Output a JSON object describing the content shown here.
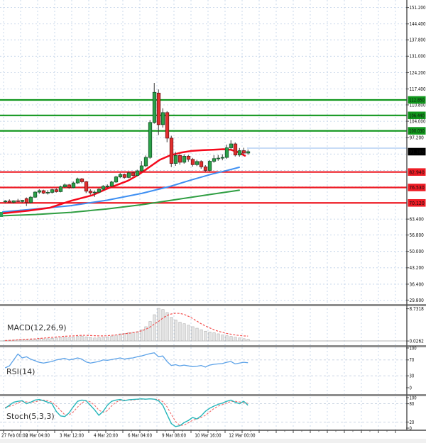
{
  "chart_data": {
    "type": "candlestick",
    "title": "",
    "current_price": {
      "label": "91.385",
      "value": 91.385,
      "badge_bg": "#000000",
      "badge_text": "#ffffff"
    },
    "price_ticks": [
      {
        "label": "151.200",
        "value": 151.2
      },
      {
        "label": "144.400",
        "value": 144.4
      },
      {
        "label": "137.800",
        "value": 137.8
      },
      {
        "label": "131.000",
        "value": 131.0
      },
      {
        "label": "124.200",
        "value": 124.2
      },
      {
        "label": "117.400",
        "value": 117.4
      },
      {
        "label": "110.800",
        "value": 110.8
      },
      {
        "label": "104.000",
        "value": 104.0
      },
      {
        "label": "97.200",
        "value": 97.2
      },
      {
        "label": "63.400",
        "value": 63.4
      },
      {
        "label": "56.800",
        "value": 56.8
      },
      {
        "label": "50.000",
        "value": 50.0
      },
      {
        "label": "43.200",
        "value": 43.2
      },
      {
        "label": "36.400",
        "value": 36.4
      },
      {
        "label": "29.800",
        "value": 29.8
      }
    ],
    "hidden_grid_ticks": [
      90.4,
      83.6,
      76.8,
      70.0
    ],
    "time_labels": [
      "27 Feb 00:00",
      "2 Mar 04:00",
      "3 Mar 12:00",
      "4 Mar 20:00",
      "6 Mar 04:00",
      "9 Mar 08:00",
      "10 Mar 16:00",
      "12 Mar 00:00"
    ],
    "levels": {
      "resistance": [
        {
          "label": "112.850",
          "value": 112.85
        },
        {
          "label": "106.440",
          "value": 106.44
        },
        {
          "label": "100.030",
          "value": 100.03
        }
      ],
      "resistance_color": "#10961c",
      "support": [
        {
          "label": "82.940",
          "value": 82.94
        },
        {
          "label": "76.530",
          "value": 76.53
        },
        {
          "label": "70.120",
          "value": 70.12
        }
      ],
      "support_color": "#ee1c25"
    },
    "candles": [
      [
        70.6,
        71.3,
        70.0,
        70.9
      ],
      [
        70.9,
        71.6,
        70.3,
        70.4
      ],
      [
        70.4,
        71.2,
        69.9,
        71.0
      ],
      [
        71.0,
        71.8,
        70.5,
        70.7
      ],
      [
        70.7,
        71.4,
        70.1,
        71.2
      ],
      [
        71.9,
        72.4,
        68.8,
        70.3
      ],
      [
        70.3,
        73.0,
        69.9,
        72.5
      ],
      [
        72.5,
        75.0,
        72.2,
        74.6
      ],
      [
        74.6,
        75.8,
        73.9,
        75.2
      ],
      [
        75.2,
        75.6,
        73.8,
        74.2
      ],
      [
        74.3,
        75.4,
        73.6,
        74.5
      ],
      [
        74.5,
        76.0,
        74.0,
        75.6
      ],
      [
        75.6,
        76.2,
        74.4,
        74.8
      ],
      [
        74.8,
        77.3,
        74.5,
        76.8
      ],
      [
        76.8,
        78.2,
        76.3,
        77.6
      ],
      [
        77.6,
        78.0,
        76.0,
        76.5
      ],
      [
        76.5,
        79.0,
        76.2,
        78.4
      ],
      [
        78.4,
        80.6,
        78.0,
        80.1
      ],
      [
        80.1,
        80.5,
        78.3,
        78.9
      ],
      [
        78.9,
        79.2,
        74.2,
        75.0
      ],
      [
        75.0,
        75.8,
        73.5,
        74.3
      ],
      [
        74.3,
        75.3,
        72.6,
        74.6
      ],
      [
        74.6,
        76.2,
        74.2,
        75.8
      ],
      [
        75.8,
        77.5,
        75.4,
        77.0
      ],
      [
        77.0,
        77.8,
        76.4,
        77.1
      ],
      [
        77.1,
        79.3,
        76.8,
        78.8
      ],
      [
        78.8,
        81.4,
        78.4,
        80.9
      ],
      [
        80.9,
        82.6,
        80.4,
        81.9
      ],
      [
        81.9,
        82.3,
        80.2,
        80.7
      ],
      [
        80.7,
        83.2,
        80.4,
        82.6
      ],
      [
        82.6,
        83.0,
        81.0,
        81.5
      ],
      [
        81.5,
        83.9,
        81.2,
        83.4
      ],
      [
        83.4,
        87.5,
        83.0,
        85.5
      ],
      [
        85.5,
        89.8,
        85.0,
        89.0
      ],
      [
        89.0,
        104.5,
        88.4,
        103.5
      ],
      [
        103.5,
        119.9,
        103.0,
        116.0
      ],
      [
        115.7,
        117.2,
        98.3,
        102.6
      ],
      [
        102.6,
        109.4,
        101.4,
        107.6
      ],
      [
        107.6,
        108.2,
        95.3,
        97.0
      ],
      [
        97.0,
        98.0,
        85.0,
        86.5
      ],
      [
        86.5,
        91.3,
        85.5,
        89.8
      ],
      [
        89.8,
        90.4,
        86.0,
        87.0
      ],
      [
        87.0,
        90.3,
        86.4,
        89.5
      ],
      [
        89.5,
        90.0,
        87.2,
        88.2
      ],
      [
        88.2,
        88.8,
        85.2,
        86.0
      ],
      [
        86.0,
        88.0,
        85.4,
        87.3
      ],
      [
        87.3,
        87.8,
        84.3,
        85.1
      ],
      [
        85.1,
        85.8,
        83.0,
        83.6
      ],
      [
        83.6,
        87.9,
        83.2,
        87.4
      ],
      [
        87.4,
        89.9,
        86.8,
        88.5
      ],
      [
        88.5,
        90.0,
        87.6,
        88.7
      ],
      [
        88.7,
        90.3,
        87.8,
        89.0
      ],
      [
        89.0,
        94.3,
        88.4,
        93.0
      ],
      [
        93.0,
        96.1,
        92.4,
        94.6
      ],
      [
        94.6,
        95.2,
        89.4,
        90.0
      ],
      [
        90.0,
        92.9,
        89.3,
        91.8
      ],
      [
        91.8,
        93.0,
        90.2,
        90.8
      ],
      [
        90.8,
        92.3,
        90.1,
        91.385
      ]
    ],
    "candle_colors": {
      "up_fill": "#2aa148",
      "up_stroke": "#17532b",
      "down_fill": "#e22f2f",
      "down_stroke": "#6d1616",
      "wick": "#3a3a3a"
    },
    "moving_averages": [
      {
        "name": "ma-green-slow",
        "color": "#2f9e42",
        "width": 2,
        "points": [
          [
            4,
            64.8
          ],
          [
            50,
            65.3
          ],
          [
            100,
            66.2
          ],
          [
            150,
            67.6
          ],
          [
            200,
            69.4
          ],
          [
            250,
            71.6
          ],
          [
            300,
            73.8
          ],
          [
            337,
            75.4
          ]
        ]
      },
      {
        "name": "ma-blue-mid",
        "color": "#3e8ff2",
        "width": 2,
        "points": [
          [
            4,
            66.4
          ],
          [
            50,
            67.6
          ],
          [
            100,
            69.0
          ],
          [
            150,
            71.2
          ],
          [
            200,
            74.1
          ],
          [
            240,
            77.0
          ],
          [
            270,
            79.7
          ],
          [
            300,
            82.2
          ],
          [
            320,
            83.6
          ],
          [
            337,
            84.9
          ]
        ]
      },
      {
        "name": "ma-red-fast",
        "color": "#f5091c",
        "width": 2.5,
        "points": [
          [
            4,
            65.8
          ],
          [
            40,
            66.9
          ],
          [
            70,
            68.1
          ],
          [
            100,
            71.0
          ],
          [
            130,
            73.3
          ],
          [
            150,
            75.9
          ],
          [
            165,
            77.6
          ],
          [
            180,
            79.3
          ],
          [
            195,
            81.8
          ],
          [
            210,
            84.9
          ],
          [
            225,
            88.0
          ],
          [
            240,
            89.9
          ],
          [
            255,
            91.0
          ],
          [
            270,
            91.7
          ],
          [
            285,
            92.0
          ],
          [
            300,
            92.2
          ],
          [
            315,
            92.4
          ],
          [
            325,
            92.2
          ],
          [
            335,
            91.2
          ],
          [
            345,
            89.7
          ]
        ]
      }
    ],
    "indicators": {
      "macd": {
        "label": "MACD(12,26,9)",
        "max_label": "8.7318",
        "min_label": "0.0262",
        "histogram_color": "#e4e4e4",
        "histogram_stroke": "#b0b0b0",
        "signal_color": "#f4504f",
        "histogram": [
          0.15,
          0.2,
          0.25,
          0.3,
          0.35,
          0.3,
          0.35,
          0.5,
          0.6,
          0.55,
          0.6,
          0.7,
          0.8,
          0.9,
          1.0,
          0.9,
          1.0,
          1.2,
          1.3,
          1.1,
          0.9,
          0.8,
          0.9,
          1.0,
          1.1,
          1.3,
          1.6,
          1.9,
          2.0,
          2.2,
          2.3,
          2.5,
          3.0,
          3.8,
          5.2,
          7.0,
          8.7,
          8.4,
          7.6,
          6.3,
          5.6,
          5.0,
          4.6,
          4.2,
          3.8,
          3.4,
          3.0,
          2.6,
          2.4,
          2.2,
          1.9,
          1.6,
          1.4,
          1.2,
          1.0,
          0.8,
          0.6,
          0.45
        ],
        "signal": [
          0.1,
          0.15,
          0.2,
          0.3,
          0.4,
          0.45,
          0.5,
          0.55,
          0.65,
          0.75,
          0.85,
          0.95,
          1.05,
          1.15,
          1.25,
          1.3,
          1.35,
          1.45,
          1.5,
          1.5,
          1.45,
          1.4,
          1.35,
          1.35,
          1.4,
          1.5,
          1.6,
          1.75,
          1.9,
          2.05,
          2.2,
          2.4,
          2.7,
          3.1,
          3.7,
          4.5,
          5.2,
          6.1,
          6.8,
          7.2,
          7.4,
          7.35,
          7.1,
          6.6,
          6.0,
          5.3,
          4.6,
          4.0,
          3.5,
          3.0,
          2.6,
          2.3,
          2.0,
          1.8,
          1.6,
          1.45,
          1.35,
          1.3
        ]
      },
      "rsi": {
        "label": "RSI(14)",
        "line_color": "#5ca2e8",
        "ticks": [
          "100",
          "70",
          "30",
          "0"
        ],
        "level_lines": [
          70,
          30
        ],
        "values": [
          50,
          55,
          70,
          85,
          75,
          78,
          72,
          68,
          64,
          62,
          64,
          66,
          70,
          72,
          74,
          70,
          72,
          75,
          72,
          65,
          62,
          64,
          66,
          70,
          69,
          71,
          73,
          75,
          72,
          74,
          75,
          78,
          80,
          83,
          86,
          88,
          78,
          80,
          66,
          56,
          58,
          55,
          57,
          55,
          53,
          54,
          56,
          52,
          57,
          59,
          60,
          61,
          64,
          66,
          60,
          62,
          64,
          63
        ]
      },
      "stoch": {
        "label": "Stoch(5,3,3)",
        "k_color": "#25b6ba",
        "d_color": "#f26d6d",
        "ticks": [
          "100",
          "80",
          "20",
          "0"
        ],
        "level_lines": [
          80,
          20
        ],
        "k": [
          65,
          75,
          85,
          88,
          90,
          80,
          85,
          92,
          94,
          90,
          85,
          80,
          55,
          40,
          38,
          50,
          70,
          88,
          92,
          90,
          75,
          60,
          42,
          55,
          75,
          88,
          92,
          94,
          90,
          93,
          94,
          95,
          96,
          95,
          96,
          95,
          90,
          75,
          45,
          15,
          5,
          8,
          18,
          25,
          35,
          30,
          40,
          55,
          65,
          72,
          78,
          82,
          88,
          92,
          85,
          80,
          88,
          75
        ],
        "d": [
          68,
          72,
          75,
          83,
          88,
          86,
          85,
          86,
          90,
          92,
          90,
          85,
          73,
          58,
          44,
          43,
          53,
          69,
          83,
          90,
          86,
          75,
          59,
          52,
          57,
          73,
          85,
          91,
          92,
          92,
          92,
          94,
          95,
          95,
          96,
          95,
          94,
          87,
          70,
          45,
          22,
          9,
          10,
          17,
          26,
          30,
          35,
          42,
          53,
          64,
          72,
          77,
          83,
          87,
          88,
          86,
          84,
          81
        ]
      }
    },
    "layout_hints": {
      "grid": "on",
      "grid_color": "#becfe6",
      "axis_side": "right",
      "panels_order": [
        "price",
        "macd",
        "rsi",
        "stoch"
      ]
    }
  }
}
